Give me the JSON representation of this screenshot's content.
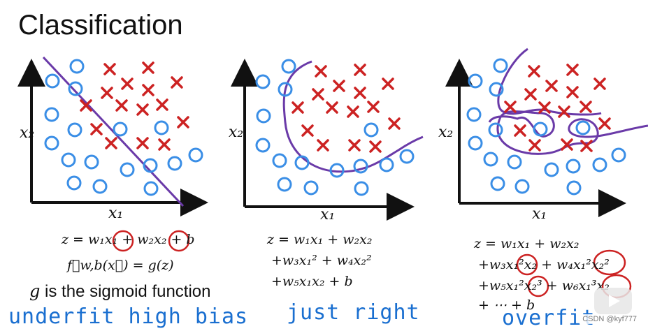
{
  "title": "Classification",
  "colors": {
    "cross": "#cc2222",
    "circle": "#3a8ee6",
    "boundary": "#6a3aa8",
    "handwriting": "#1a6fd0"
  },
  "panels": [
    {
      "id": "underfit",
      "x_label": "x₁",
      "y_label": "x₂",
      "equations": [
        "z = w₁x₁ + w₂x₂ + b",
        "f⃗w,b(x⃗) = g(z)"
      ],
      "handwritten_label": "underfit   high bias"
    },
    {
      "id": "just-right",
      "x_label": "x₁",
      "y_label": "x₂",
      "equations": [
        "z = w₁x₁ + w₂x₂",
        "+w₃x₁² + w₄x₂²",
        "+w₅x₁x₂ + b"
      ],
      "handwritten_label": "just right"
    },
    {
      "id": "overfit",
      "x_label": "x₁",
      "y_label": "x₂",
      "equations": [
        "z = w₁x₁ + w₂x₂",
        "+w₃x₁²x₂ + w₄x₁²x₂²",
        "+w₅x₁²x₂³ + w₆x₁³x₂",
        "+ ⋯ + b"
      ],
      "handwritten_label": "overfit"
    }
  ],
  "sigmoid_note": {
    "var": "g",
    "text": "is the sigmoid function"
  },
  "watermark": "CSDN @kyf777"
}
